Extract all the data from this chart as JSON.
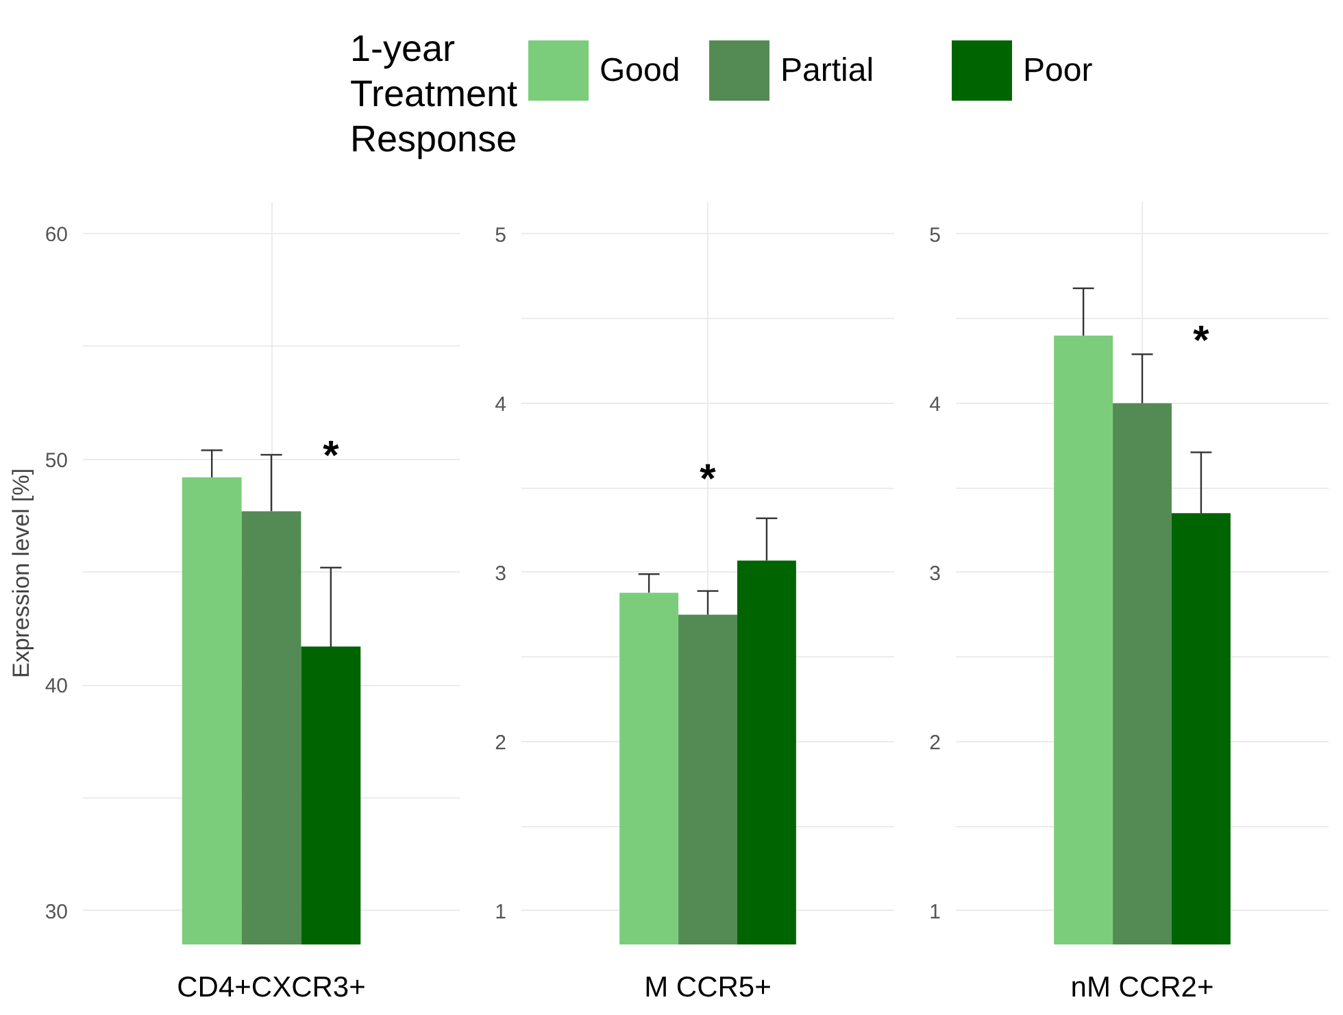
{
  "chart_data": [
    {
      "type": "bar",
      "legend_title": "1-year Treatment Response",
      "legend": "top",
      "ylabel": "Expression level [%]",
      "categories": [
        "CD4+CXCR3+"
      ],
      "ylim": [
        28.5,
        61.4
      ],
      "yticks": [
        30,
        {
          "value": 35,
          "label": null
        },
        40,
        {
          "value": 45,
          "label": null
        },
        50,
        {
          "value": 55,
          "label": null
        },
        60
      ],
      "grid": true,
      "series": [
        {
          "name": "Good",
          "color": "#7bcd7b",
          "values": [
            49.2
          ],
          "errors": [
            [
              49.2,
              50.4
            ]
          ]
        },
        {
          "name": "Partial",
          "color": "#548b54",
          "values": [
            47.7
          ],
          "errors": [
            [
              47.7,
              50.2
            ]
          ]
        },
        {
          "name": "Poor",
          "color": "#006400",
          "values": [
            41.7
          ],
          "errors": [
            [
              41.7,
              45.2
            ]
          ]
        }
      ],
      "annotations": [
        "*"
      ]
    },
    {
      "type": "bar",
      "categories": [
        "M CCR5+"
      ],
      "ylim": [
        0.8,
        5.19
      ],
      "yticks": [
        1,
        {
          "value": 1.5,
          "label": null
        },
        2,
        {
          "value": 2.5,
          "label": null
        },
        3,
        {
          "value": 3.5,
          "label": null
        },
        4,
        {
          "value": 4.5,
          "label": null
        },
        5
      ],
      "grid": true,
      "series": [
        {
          "color": "#7bcd7b",
          "values": [
            2.88
          ],
          "errors": [
            [
              2.88,
              2.99
            ]
          ]
        },
        {
          "color": "#548b54",
          "values": [
            2.75
          ],
          "errors": [
            [
              2.75,
              2.89
            ]
          ]
        },
        {
          "color": "#006400",
          "values": [
            3.07
          ],
          "errors": [
            [
              3.07,
              3.32
            ]
          ]
        }
      ],
      "annotations": [
        "*"
      ]
    },
    {
      "type": "bar",
      "categories": [
        "nM CCR2+"
      ],
      "ylim": [
        0.8,
        5.19
      ],
      "yticks": [
        1,
        {
          "value": 1.5,
          "label": null
        },
        2,
        {
          "value": 2.5,
          "label": null
        },
        3,
        {
          "value": 3.5,
          "label": null
        },
        4,
        {
          "value": 4.5,
          "label": null
        },
        5
      ],
      "grid": true,
      "series": [
        {
          "color": "#7bcd7b",
          "values": [
            4.4
          ],
          "errors": [
            [
              4.4,
              4.68
            ]
          ]
        },
        {
          "color": "#548b54",
          "values": [
            4.0
          ],
          "errors": [
            [
              4.0,
              4.29
            ]
          ]
        },
        {
          "color": "#006400",
          "values": [
            3.35
          ],
          "errors": [
            [
              3.35,
              3.71
            ]
          ]
        }
      ],
      "annotations": [
        "*"
      ]
    }
  ]
}
